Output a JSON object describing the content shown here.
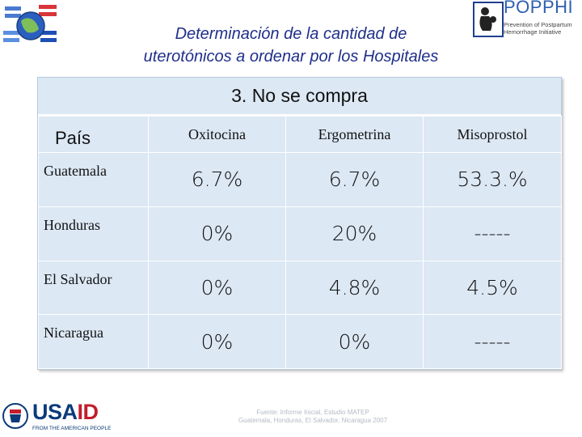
{
  "title": {
    "line1": "Determinación de la cantidad de",
    "line2": "uterotónicos  a ordenar por los Hospitales"
  },
  "logo_right": {
    "brand": "POPPHI",
    "tagline": "Prevention of Postpartum Hemorrhage Initiative"
  },
  "usaid": {
    "wordmark_us": "USA",
    "wordmark_aid": "ID",
    "subtitle": "FROM THE AMERICAN PEOPLE"
  },
  "table": {
    "heading": "3. No se compra",
    "columns": [
      "País",
      "Oxitocina",
      "Ergometrina",
      "Misoprostol"
    ],
    "rows": [
      {
        "country": "Guatemala",
        "values": [
          "6.7%",
          "6.7%",
          "53.3.%"
        ]
      },
      {
        "country": "Honduras",
        "values": [
          "0%",
          "20%",
          "-----"
        ]
      },
      {
        "country": "El Salvador",
        "values": [
          "0%",
          "4.8%",
          "4.5%"
        ]
      },
      {
        "country": "Nicaragua",
        "values": [
          "0%",
          "0%",
          "-----"
        ]
      }
    ]
  },
  "source": {
    "line1": "Fuente: Informe Inicial, Estudio MATEP",
    "line2": "Guatemala, Honduras, El Salvador, Nicaragua 2007"
  }
}
